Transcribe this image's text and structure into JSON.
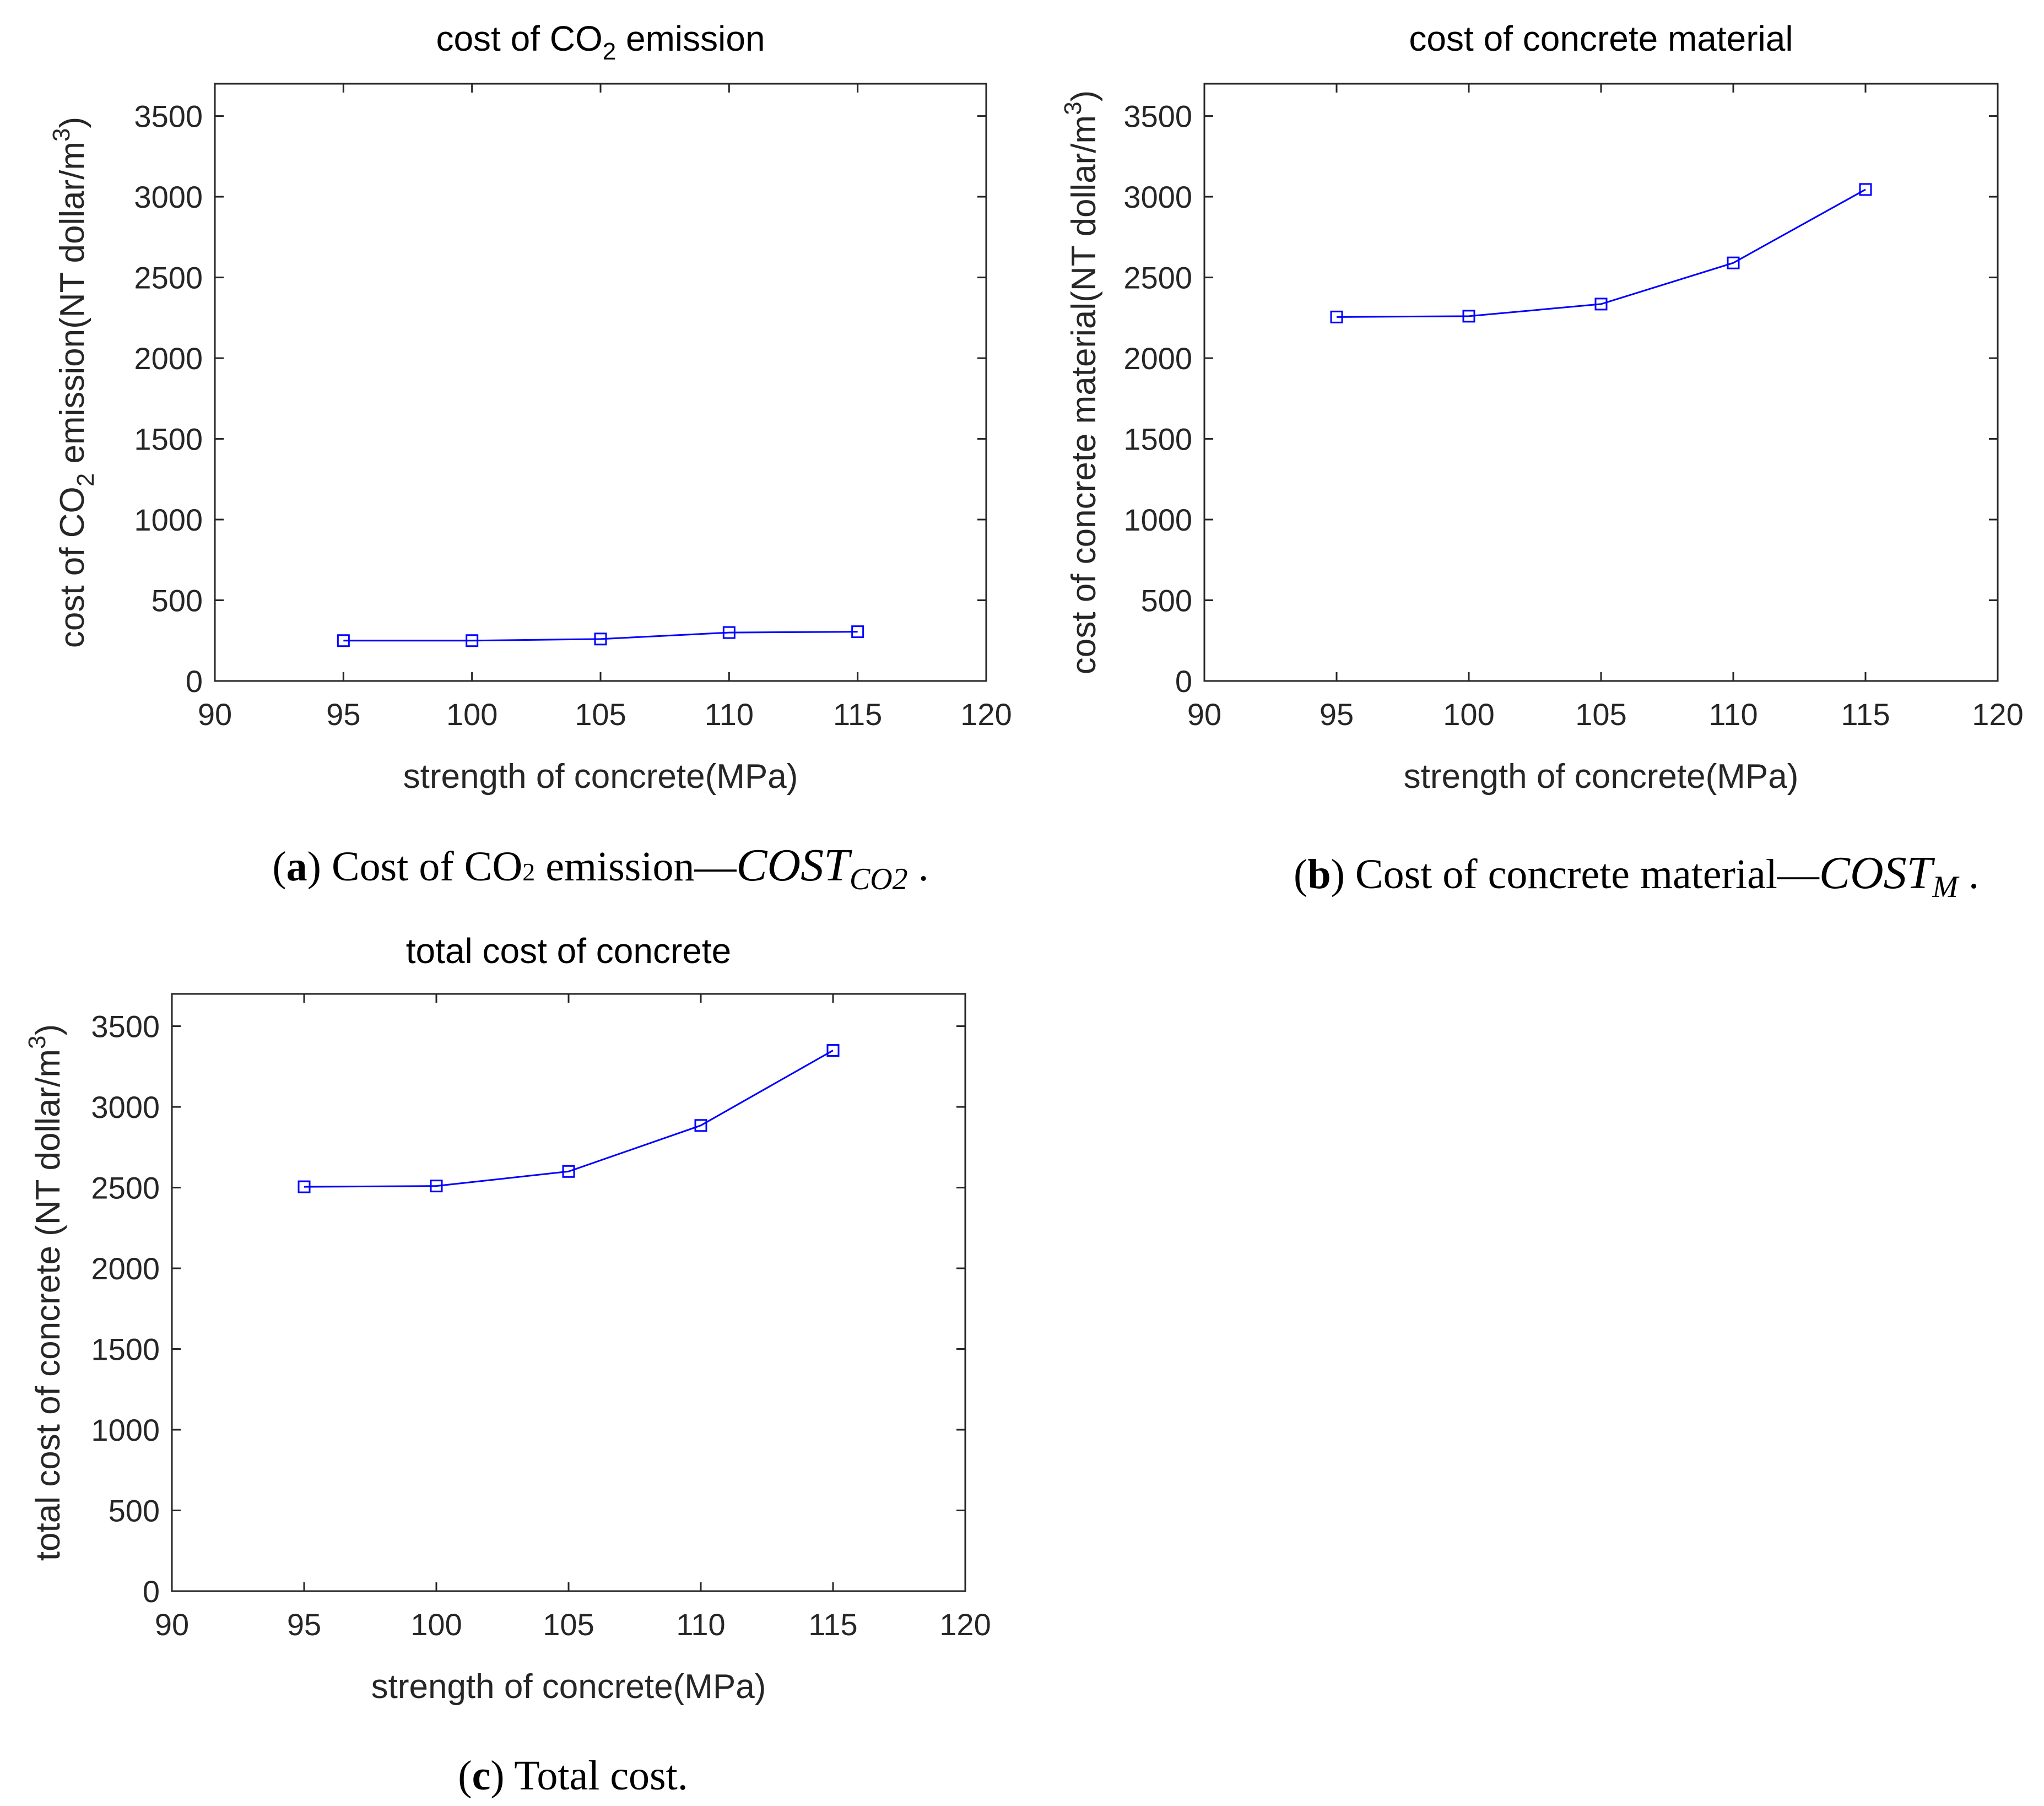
{
  "colors": {
    "series": "#0000ff",
    "axis": "#262626",
    "text": "#000000"
  },
  "chart_data": [
    {
      "id": "a",
      "type": "line",
      "title_main": "cost of CO",
      "title_sub": "2",
      "title_end": " emission",
      "xlabel": "strength of concrete(MPa)",
      "ylabel_main": "cost of CO",
      "ylabel_sub": "2",
      "ylabel_mid": " emission(NT dollar/m",
      "ylabel_sup": "3",
      "ylabel_end": ")",
      "x": [
        95,
        100,
        105,
        110,
        115
      ],
      "values": [
        250,
        250,
        260,
        300,
        305
      ],
      "xlim": [
        90,
        120
      ],
      "ylim": [
        0,
        3700
      ],
      "xticks": [
        90,
        95,
        100,
        105,
        110,
        115,
        120
      ],
      "yticks": [
        0,
        500,
        1000,
        1500,
        2000,
        2500,
        3000,
        3500
      ],
      "marker": "square",
      "grid": false,
      "caption_label": "a",
      "caption_text": " Cost of CO",
      "caption_sub": "2",
      "caption_rest": " emission—",
      "caption_math": "COST",
      "caption_math_sub": "CO2",
      "caption_end": "."
    },
    {
      "id": "b",
      "type": "line",
      "title_main": "cost of concrete material",
      "title_sub": "",
      "title_end": "",
      "xlabel": "strength of concrete(MPa)",
      "ylabel_main": "cost of concrete material(NT dollar/m",
      "ylabel_sub": "",
      "ylabel_mid": "",
      "ylabel_sup": "3",
      "ylabel_end": ")",
      "x": [
        95,
        100,
        105,
        110,
        115
      ],
      "values": [
        2255,
        2260,
        2335,
        2590,
        3045
      ],
      "xlim": [
        90,
        120
      ],
      "ylim": [
        0,
        3700
      ],
      "xticks": [
        90,
        95,
        100,
        105,
        110,
        115,
        120
      ],
      "yticks": [
        0,
        500,
        1000,
        1500,
        2000,
        2500,
        3000,
        3500
      ],
      "marker": "square",
      "grid": false,
      "caption_label": "b",
      "caption_text": " Cost of concrete material—",
      "caption_sub": "",
      "caption_rest": "",
      "caption_math": "COST",
      "caption_math_sub": "M",
      "caption_end": "."
    },
    {
      "id": "c",
      "type": "line",
      "title_main": "total cost of concrete",
      "title_sub": "",
      "title_end": "",
      "xlabel": "strength of concrete(MPa)",
      "ylabel_main": "total cost of concrete (NT dollar/m",
      "ylabel_sub": "",
      "ylabel_mid": "",
      "ylabel_sup": "3",
      "ylabel_end": ")",
      "x": [
        95,
        100,
        105,
        110,
        115
      ],
      "values": [
        2505,
        2510,
        2600,
        2885,
        3350
      ],
      "xlim": [
        90,
        120
      ],
      "ylim": [
        0,
        3700
      ],
      "xticks": [
        90,
        95,
        100,
        105,
        110,
        115,
        120
      ],
      "yticks": [
        0,
        500,
        1000,
        1500,
        2000,
        2500,
        3000,
        3500
      ],
      "marker": "square",
      "grid": false,
      "caption_label": "c",
      "caption_text": " Total cost.",
      "caption_sub": "",
      "caption_rest": "",
      "caption_math": "",
      "caption_math_sub": "",
      "caption_end": ""
    }
  ]
}
